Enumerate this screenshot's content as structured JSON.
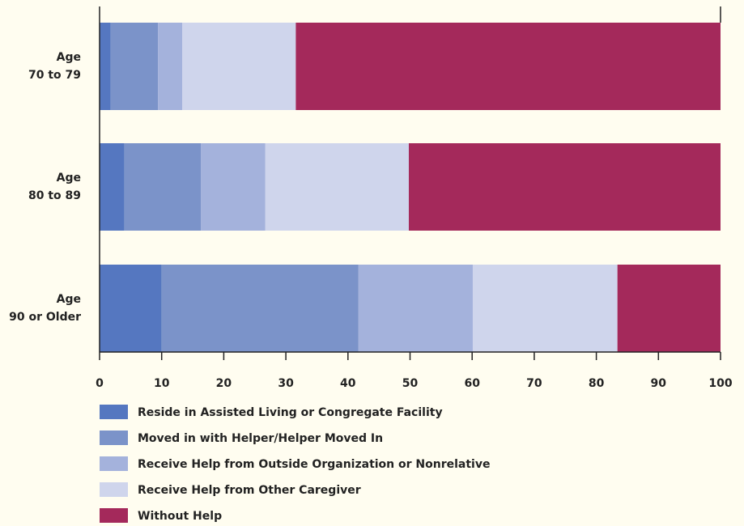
{
  "chart_data": {
    "type": "stacked-bar-horizontal",
    "categories": [
      [
        "Age",
        "70 to 79"
      ],
      [
        "Age",
        "80 to 89"
      ],
      [
        "Age",
        "90 or Older"
      ]
    ],
    "series": [
      {
        "name": "Reside in Assisted Living or Congregate Facility",
        "color": "#5577c0",
        "values": [
          1.8,
          4.0,
          10.0
        ]
      },
      {
        "name": "Moved in with Helper/Helper Moved In",
        "color": "#7b93c9",
        "values": [
          7.6,
          12.3,
          31.7
        ]
      },
      {
        "name": "Receive Help from Outside Organization or Nonrelative",
        "color": "#a4b2dc",
        "values": [
          3.9,
          10.4,
          18.4
        ]
      },
      {
        "name": "Receive Help from Other Caregiver",
        "color": "#cfd5ec",
        "values": [
          18.3,
          23.1,
          23.3
        ]
      },
      {
        "name": "Without Help",
        "color": "#a4295b",
        "values": [
          68.4,
          50.2,
          16.6
        ]
      }
    ],
    "xlim": [
      0,
      100
    ],
    "xticks": [
      0,
      10,
      20,
      30,
      40,
      50,
      60,
      70,
      80,
      90,
      100
    ]
  }
}
